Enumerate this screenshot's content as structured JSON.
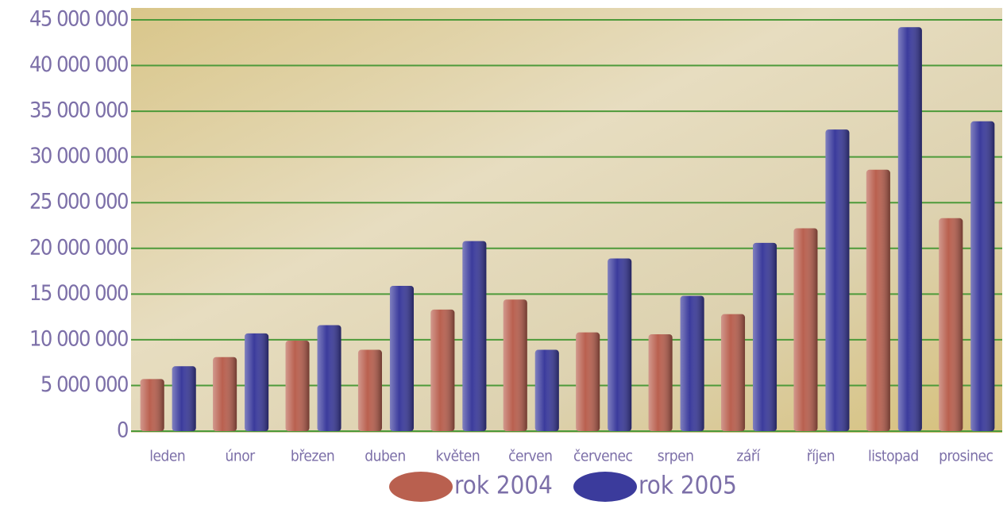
{
  "chart_data": {
    "type": "bar",
    "categories": [
      "leden",
      "únor",
      "březen",
      "duben",
      "květen",
      "červen",
      "červenec",
      "srpen",
      "září",
      "říjen",
      "listopad",
      "prosinec"
    ],
    "series": [
      {
        "name": "rok 2004",
        "color": "#b9604f",
        "values": [
          5700000,
          8100000,
          9900000,
          8900000,
          13300000,
          14400000,
          10800000,
          10600000,
          12800000,
          22200000,
          28600000,
          23300000
        ]
      },
      {
        "name": "rok 2005",
        "color": "#3b3b9c",
        "values": [
          7100000,
          10700000,
          11600000,
          15900000,
          20800000,
          8900000,
          18900000,
          14800000,
          20600000,
          33000000,
          44200000,
          33900000
        ]
      }
    ],
    "ylim": [
      0,
      45000000
    ],
    "yticks": [
      0,
      {
        "value": 5000000,
        "label": "5 000 000"
      },
      {
        "value": 10000000,
        "label": "10 000 000"
      },
      {
        "value": 15000000,
        "label": "15 000 000"
      },
      {
        "value": 20000000,
        "label": "20 000 000"
      },
      {
        "value": 25000000,
        "label": "25 000 000"
      },
      {
        "value": 30000000,
        "label": "30 000 000"
      },
      {
        "value": 35000000,
        "label": "35 000 000"
      },
      {
        "value": 40000000,
        "label": "40 000 000"
      },
      {
        "value": 45000000,
        "label": "45 000 000"
      }
    ],
    "grid": true,
    "legend": "bottom"
  }
}
